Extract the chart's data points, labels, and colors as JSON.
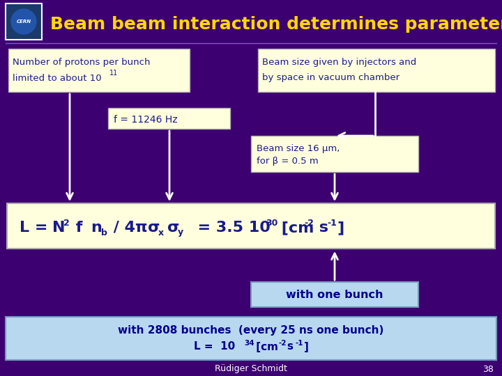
{
  "bg_color": "#3D0070",
  "title": "Beam beam interaction determines parameters",
  "title_color": "#FFD700",
  "title_fontsize": 18,
  "box_fill_yellow": "#FFFFDD",
  "box_fill_lightblue": "#B8D8F0",
  "box_edge_color": "#AAAAAA",
  "box_text_color": "#1A1A8C",
  "footer_text": "Rüdiger Schmidt",
  "footer_page": "38"
}
